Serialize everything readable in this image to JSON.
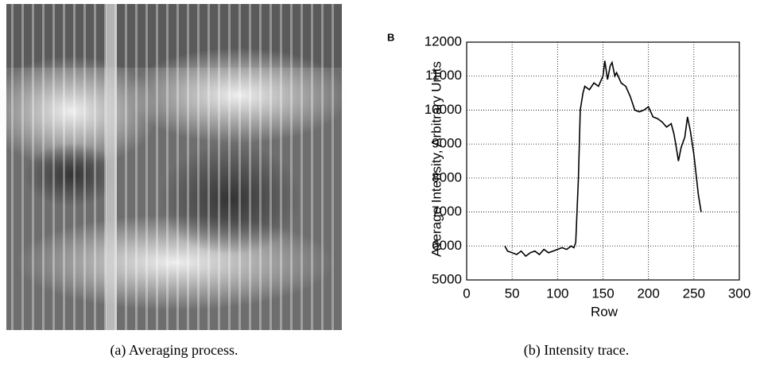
{
  "chart_data": {
    "type": "line",
    "panel_label": "B",
    "x_label": "Row",
    "y_label": "Average Intensity, Arbitrary Units",
    "x": [
      42,
      45,
      50,
      55,
      60,
      65,
      70,
      75,
      80,
      85,
      90,
      95,
      100,
      105,
      110,
      115,
      118,
      120,
      123,
      125,
      128,
      130,
      135,
      140,
      145,
      150,
      152,
      155,
      158,
      160,
      163,
      165,
      170,
      175,
      180,
      185,
      190,
      195,
      200,
      205,
      210,
      215,
      220,
      225,
      228,
      230,
      233,
      236,
      240,
      243,
      246,
      250,
      255,
      258
    ],
    "values": [
      6000,
      5850,
      5800,
      5750,
      5850,
      5700,
      5800,
      5850,
      5750,
      5900,
      5800,
      5850,
      5900,
      5950,
      5900,
      6000,
      5950,
      6100,
      8000,
      10000,
      10500,
      10700,
      10600,
      10800,
      10700,
      11000,
      11450,
      10900,
      11300,
      11400,
      11000,
      11100,
      10800,
      10700,
      10400,
      10000,
      9950,
      10000,
      10100,
      9800,
      9750,
      9650,
      9500,
      9600,
      9300,
      9000,
      8500,
      8900,
      9200,
      9800,
      9400,
      8700,
      7500,
      7000
    ],
    "color": "#000000",
    "xlim": [
      0,
      300
    ],
    "xticks": [
      0,
      50,
      100,
      150,
      200,
      250,
      300
    ],
    "ylim": [
      5000,
      12000
    ],
    "yticks": [
      5000,
      6000,
      7000,
      8000,
      9000,
      10000,
      11000,
      12000
    ],
    "grid": true
  },
  "captions": [
    "(a) Averaging process.",
    "(b) Intensity trace."
  ]
}
